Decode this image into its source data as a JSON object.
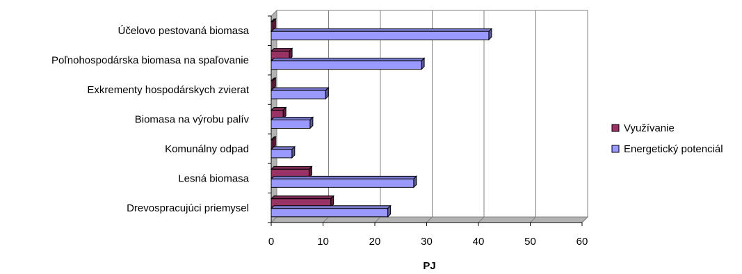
{
  "chart_data": {
    "type": "bar",
    "orientation": "horizontal",
    "style": "3d",
    "categories": [
      "Účelovo pestovaná biomasa",
      "Poľnohospodárska biomasa na spaľovanie",
      "Exkrementy hospodárskych zvierat",
      "Biomasa na výrobu palív",
      "Komunálny odpad",
      "Lesná biomasa",
      "Drevospracujúci priemysel"
    ],
    "series": [
      {
        "name": "Využívanie",
        "color": "#993366",
        "values": [
          0.3,
          3.5,
          0.3,
          2.3,
          0.3,
          7.3,
          11.5
        ]
      },
      {
        "name": "Energetický potenciál",
        "color": "#9999ff",
        "values": [
          42,
          29,
          10.5,
          7.5,
          4,
          27.5,
          22.5
        ]
      }
    ],
    "xlabel": "PJ",
    "xlim": [
      0,
      60
    ],
    "xticks": [
      "0",
      "10",
      "20",
      "30",
      "40",
      "50",
      "60"
    ],
    "grid": true,
    "legend": "right"
  }
}
